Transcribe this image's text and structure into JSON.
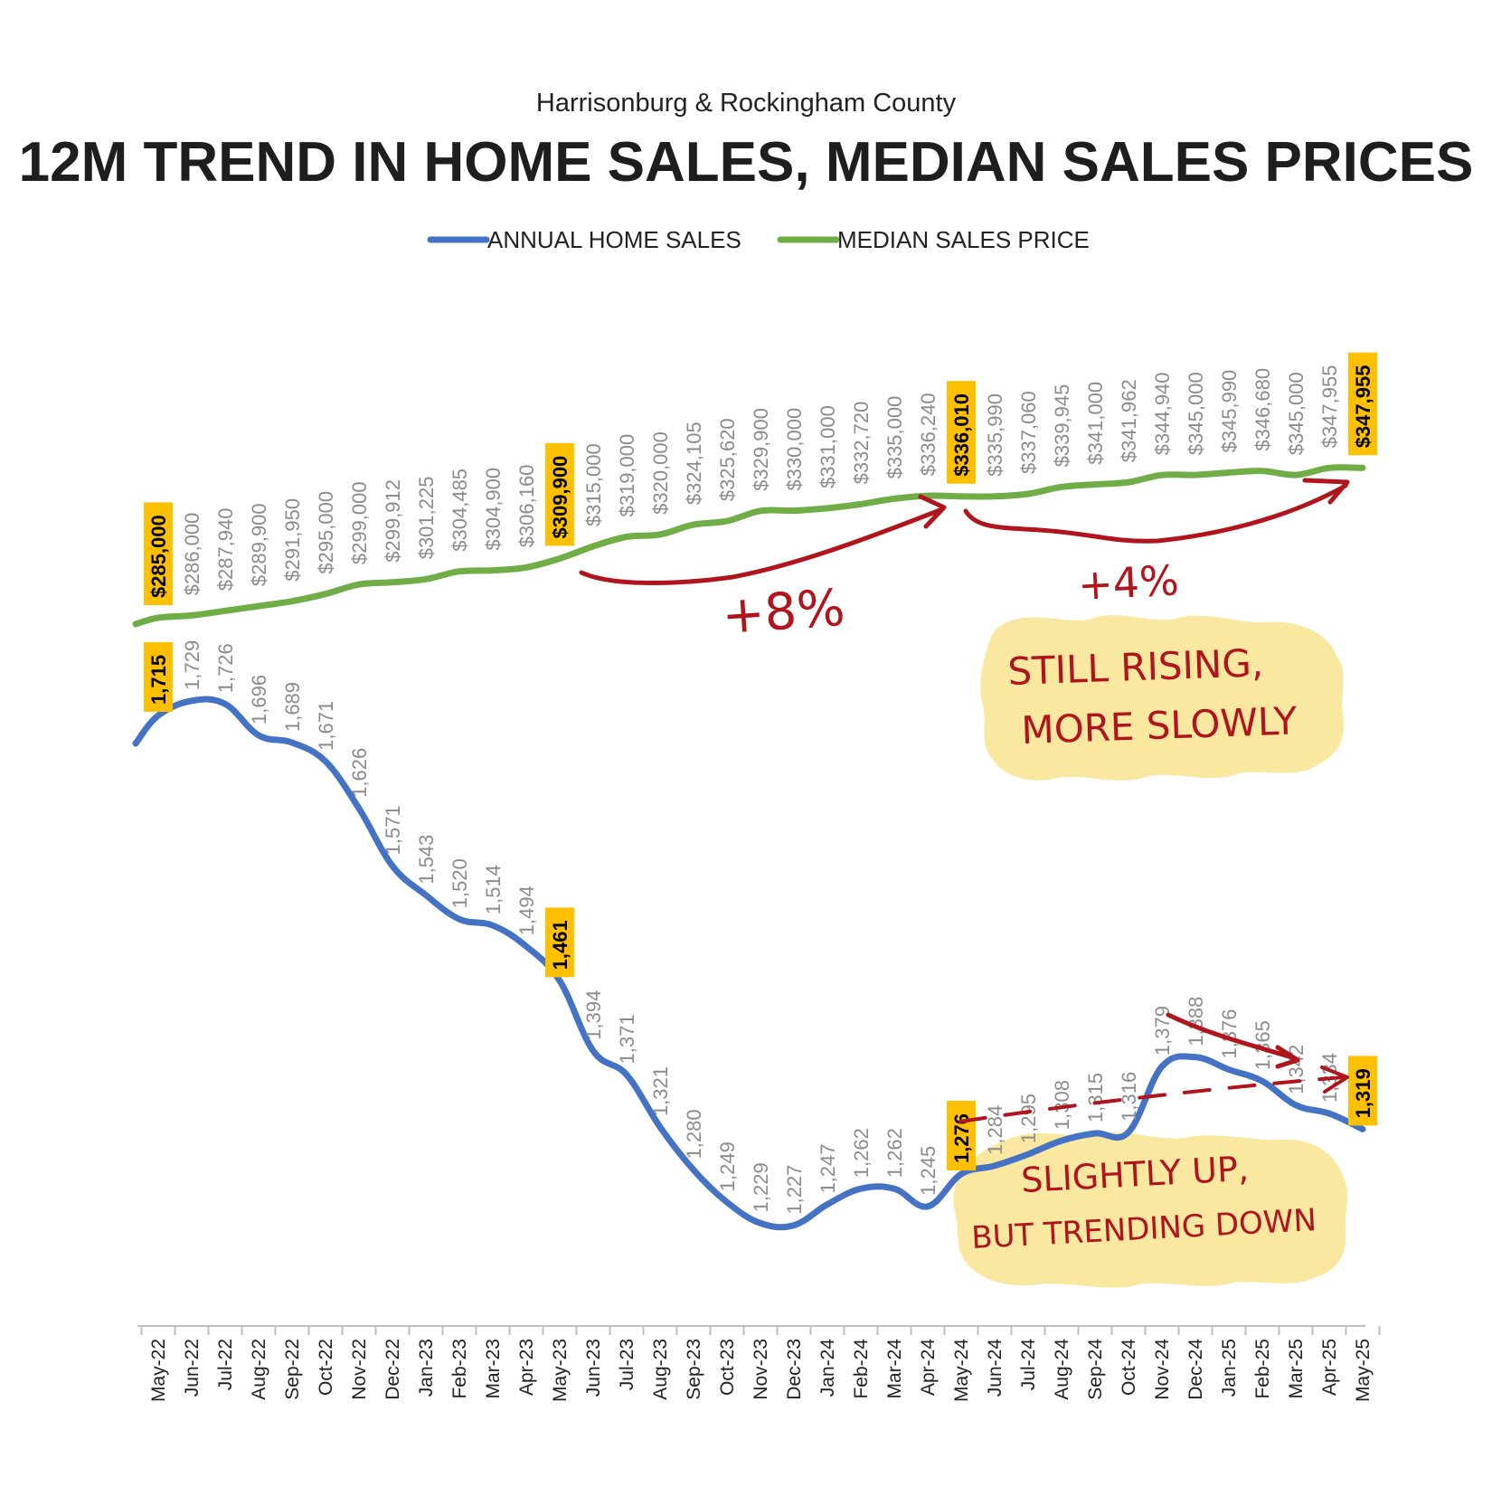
{
  "header": {
    "subtitle": "Harrisonburg & Rockingham County",
    "title": "12M TREND IN HOME SALES, MEDIAN SALES PRICES"
  },
  "colors": {
    "sales_line": "#4472c4",
    "price_line": "#70ad47",
    "highlight_box": "#ffc000",
    "annotation_red": "#b0141c",
    "note_bubble": "#fae7a0",
    "muted_label": "#8c8c8c"
  },
  "chart_data": {
    "type": "line",
    "title": "12M TREND IN HOME SALES, MEDIAN SALES PRICES",
    "subtitle": "Harrisonburg & Rockingham County",
    "legend_position": "top-center",
    "grid": false,
    "y_axis_visible": false,
    "categories": [
      "May-22",
      "Jun-22",
      "Jul-22",
      "Aug-22",
      "Sep-22",
      "Oct-22",
      "Nov-22",
      "Dec-22",
      "Jan-23",
      "Feb-23",
      "Mar-23",
      "Apr-23",
      "May-23",
      "Jun-23",
      "Jul-23",
      "Aug-23",
      "Sep-23",
      "Oct-23",
      "Nov-23",
      "Dec-23",
      "Jan-24",
      "Feb-24",
      "Mar-24",
      "Apr-24",
      "May-24",
      "Jun-24",
      "Jul-24",
      "Aug-24",
      "Sep-24",
      "Oct-24",
      "Nov-24",
      "Dec-24",
      "Jan-25",
      "Feb-25",
      "Mar-25",
      "Apr-25",
      "May-25"
    ],
    "series": [
      {
        "name": "ANNUAL HOME SALES",
        "values": [
          1715,
          1729,
          1726,
          1696,
          1689,
          1671,
          1626,
          1571,
          1543,
          1520,
          1514,
          1494,
          1461,
          1394,
          1371,
          1321,
          1280,
          1249,
          1229,
          1227,
          1247,
          1262,
          1262,
          1245,
          1276,
          1284,
          1295,
          1308,
          1315,
          1316,
          1379,
          1388,
          1376,
          1365,
          1342,
          1334,
          1319
        ],
        "labels": [
          "1,715",
          "1,729",
          "1,726",
          "1,696",
          "1,689",
          "1,671",
          "1,626",
          "1,571",
          "1,543",
          "1,520",
          "1,514",
          "1,494",
          "1,461",
          "1,394",
          "1,371",
          "1,321",
          "1,280",
          "1,249",
          "1,229",
          "1,227",
          "1,247",
          "1,262",
          "1,262",
          "1,245",
          "1,276",
          "1,284",
          "1,295",
          "1,308",
          "1,315",
          "1,316",
          "1,379",
          "1,388",
          "1,376",
          "1,365",
          "1,342",
          "1,334",
          "1,319"
        ],
        "highlighted": [
          0,
          12,
          24,
          36
        ]
      },
      {
        "name": "MEDIAN SALES PRICE",
        "values": [
          285000,
          286000,
          287940,
          289900,
          291950,
          295000,
          299000,
          299912,
          301225,
          304485,
          304900,
          306160,
          309900,
          315000,
          319000,
          320000,
          324105,
          325620,
          329900,
          330000,
          331000,
          332720,
          335000,
          336240,
          336010,
          335990,
          337060,
          339945,
          341000,
          341962,
          344940,
          345000,
          345990,
          346680,
          345000,
          347955,
          347955
        ],
        "labels": [
          "$285,000",
          "$286,000",
          "$287,940",
          "$289,900",
          "$291,950",
          "$295,000",
          "$299,000",
          "$299,912",
          "$301,225",
          "$304,485",
          "$304,900",
          "$306,160",
          "$309,900",
          "$315,000",
          "$319,000",
          "$320,000",
          "$324,105",
          "$325,620",
          "$329,900",
          "$330,000",
          "$331,000",
          "$332,720",
          "$335,000",
          "$336,240",
          "$336,010",
          "$335,990",
          "$337,060",
          "$339,945",
          "$341,000",
          "$341,962",
          "$344,940",
          "$345,000",
          "$345,990",
          "$346,680",
          "$345,000",
          "$347,955",
          "$347,955"
        ],
        "highlighted": [
          0,
          12,
          24,
          36
        ]
      }
    ],
    "annotations": {
      "price_first_change": "+8%",
      "price_second_change": "+4%",
      "price_note_line1": "STILL RISING,",
      "price_note_line2": "MORE SLOWLY",
      "sales_note_line1": "SLIGHTLY UP,",
      "sales_note_line2": "BUT TRENDING DOWN"
    }
  }
}
